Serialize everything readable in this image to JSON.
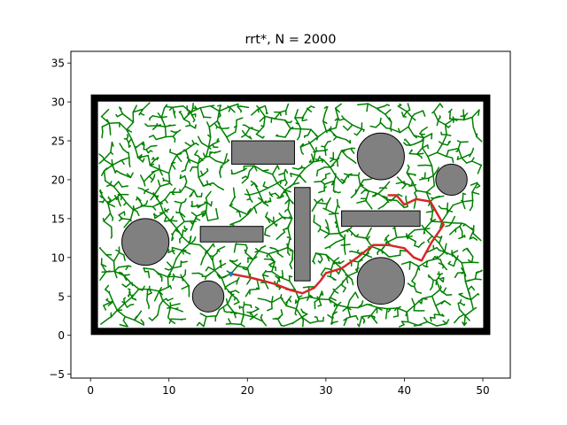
{
  "chart_data": {
    "type": "scatter",
    "title": "rrt*, N = 2000",
    "xlabel": "",
    "ylabel": "",
    "xlim": [
      -2.5,
      53.5
    ],
    "ylim": [
      -5.5,
      36.5
    ],
    "xticks": [
      0,
      10,
      20,
      30,
      40,
      50
    ],
    "yticks": [
      -5,
      0,
      5,
      10,
      15,
      20,
      25,
      30,
      35
    ],
    "grid": false,
    "colors": {
      "tree": "#008000",
      "path": "#d62728",
      "obstacle_fill": "#808080",
      "obstacle_edge": "#000000",
      "boundary": "#000000",
      "start": "#1f77b4"
    },
    "boundary": {
      "x_min": 0.5,
      "y_min": 0.5,
      "x_max": 50.5,
      "y_max": 30.5
    },
    "start": [
      17.9,
      7.9
    ],
    "goal": [
      38.0,
      18.0
    ],
    "circle_obstacles": [
      {
        "center": [
          37,
          23
        ],
        "radius": 3
      },
      {
        "center": [
          46,
          20
        ],
        "radius": 2
      },
      {
        "center": [
          7,
          12
        ],
        "radius": 3
      },
      {
        "center": [
          37,
          7
        ],
        "radius": 3
      },
      {
        "center": [
          15,
          5
        ],
        "radius": 2
      }
    ],
    "rect_obstacles": [
      {
        "x": 18,
        "y": 22,
        "width": 8,
        "height": 3
      },
      {
        "x": 14,
        "y": 12,
        "width": 8,
        "height": 2
      },
      {
        "x": 26,
        "y": 7,
        "width": 2,
        "height": 12
      },
      {
        "x": 32,
        "y": 14,
        "width": 10,
        "height": 2
      }
    ],
    "path": [
      [
        17.9,
        7.9
      ],
      [
        20.5,
        7.4
      ],
      [
        23.5,
        6.6
      ],
      [
        25.5,
        5.8
      ],
      [
        27.0,
        5.4
      ],
      [
        28.5,
        6.1
      ],
      [
        29.3,
        7.0
      ],
      [
        30.0,
        8.0
      ],
      [
        32.0,
        8.6
      ],
      [
        34.0,
        10.0
      ],
      [
        36.0,
        11.6
      ],
      [
        38.0,
        11.6
      ],
      [
        40.0,
        11.2
      ],
      [
        41.2,
        10.0
      ],
      [
        42.2,
        9.6
      ],
      [
        43.5,
        12.0
      ],
      [
        45.0,
        14.2
      ],
      [
        43.3,
        17.2
      ],
      [
        41.5,
        17.5
      ],
      [
        40.0,
        16.8
      ],
      [
        39.0,
        18.0
      ],
      [
        38.0,
        18.0
      ]
    ],
    "tree_samples": 2000
  }
}
